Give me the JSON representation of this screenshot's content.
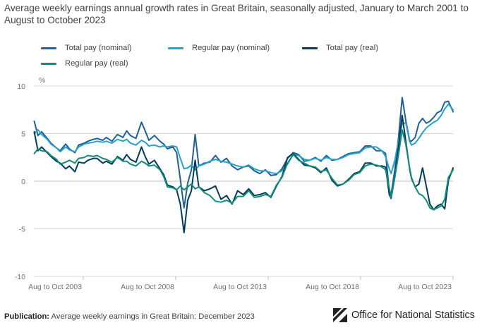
{
  "title": "Average weekly earnings annual growth rates in Great Britain, seasonally adjusted, January to March 2001 to August to October 2023",
  "footer": {
    "publication_label": "Publication:",
    "publication_text": "Average weekly earnings in Great Britain: December 2023",
    "logo_text": "Office for National Statistics"
  },
  "colors": {
    "total_nominal": "#206095",
    "regular_nominal": "#27A0CC",
    "total_real": "#003C57",
    "regular_real": "#118C7B",
    "grid": "#d9d9d9",
    "axis_text": "#707070"
  },
  "chart_data": {
    "type": "line",
    "title": "Average weekly earnings annual growth rates in Great Britain, seasonally adjusted, January to March 2001 to August to October 2023",
    "ylabel": "%",
    "xlabel": "",
    "ylim": [
      -10,
      10
    ],
    "yticks": [
      10,
      5,
      0,
      -5,
      -10
    ],
    "xlim": [
      2001.08,
      2023.75
    ],
    "xticks": [
      {
        "label": "Aug to Oct 2003",
        "x": 2003.75
      },
      {
        "label": "Aug to Oct 2008",
        "x": 2008.75
      },
      {
        "label": "Aug to Oct 2013",
        "x": 2013.75
      },
      {
        "label": "Aug to Oct 2018",
        "x": 2018.75
      },
      {
        "label": "Aug to Oct 2023",
        "x": 2023.75
      }
    ],
    "grid": true,
    "legend_position": "top",
    "series": [
      {
        "name": "Total pay (nominal)",
        "color_key": "total_nominal",
        "x": [
          2001.1,
          2001.3,
          2001.5,
          2001.8,
          2002.0,
          2002.3,
          2002.5,
          2002.8,
          2003.0,
          2003.3,
          2003.5,
          2003.8,
          2004.0,
          2004.3,
          2004.5,
          2004.8,
          2005.0,
          2005.3,
          2005.6,
          2005.9,
          2006.1,
          2006.3,
          2006.6,
          2006.9,
          2007.1,
          2007.3,
          2007.6,
          2007.9,
          2008.1,
          2008.3,
          2008.6,
          2008.8,
          2009.0,
          2009.2,
          2009.4,
          2009.6,
          2009.8,
          2010.0,
          2010.3,
          2010.6,
          2010.9,
          2011.2,
          2011.5,
          2011.8,
          2012.1,
          2012.4,
          2012.7,
          2013.0,
          2013.3,
          2013.6,
          2013.9,
          2014.2,
          2014.5,
          2014.8,
          2015.1,
          2015.4,
          2015.7,
          2016.0,
          2016.3,
          2016.6,
          2016.9,
          2017.2,
          2017.5,
          2017.8,
          2018.1,
          2018.4,
          2018.7,
          2019.0,
          2019.3,
          2019.6,
          2019.9,
          2020.1,
          2020.3,
          2020.4,
          2020.6,
          2020.8,
          2021.0,
          2021.2,
          2021.4,
          2021.5,
          2021.7,
          2021.9,
          2022.1,
          2022.3,
          2022.5,
          2022.7,
          2022.9,
          2023.1,
          2023.3,
          2023.5,
          2023.75
        ],
        "values": [
          6.3,
          4.8,
          5.2,
          4.5,
          4.0,
          3.5,
          3.2,
          3.9,
          3.4,
          3.0,
          3.8,
          4.0,
          4.2,
          4.4,
          4.5,
          4.3,
          4.6,
          4.2,
          4.9,
          4.6,
          5.3,
          4.8,
          4.5,
          6.2,
          5.3,
          4.3,
          4.8,
          4.2,
          3.9,
          3.4,
          3.6,
          3.0,
          0.2,
          -2.8,
          -0.2,
          1.2,
          4.9,
          1.6,
          1.9,
          2.0,
          2.7,
          2.0,
          2.4,
          1.6,
          1.2,
          1.5,
          1.6,
          1.1,
          0.8,
          1.2,
          0.6,
          0.7,
          1.3,
          2.4,
          3.0,
          2.8,
          2.1,
          2.2,
          2.5,
          2.1,
          2.7,
          2.2,
          2.3,
          2.6,
          2.9,
          3.0,
          3.1,
          3.7,
          3.7,
          3.2,
          3.2,
          2.9,
          -1.0,
          -1.4,
          1.2,
          4.6,
          8.8,
          6.3,
          4.3,
          4.2,
          4.6,
          6.1,
          6.6,
          6.1,
          6.3,
          6.7,
          7.2,
          7.4,
          8.3,
          8.4,
          7.3
        ]
      },
      {
        "name": "Regular pay (nominal)",
        "color_key": "regular_nominal",
        "x": [
          2001.1,
          2001.3,
          2001.5,
          2001.8,
          2002.0,
          2002.3,
          2002.5,
          2002.8,
          2003.0,
          2003.3,
          2003.5,
          2003.8,
          2004.0,
          2004.3,
          2004.5,
          2004.8,
          2005.0,
          2005.3,
          2005.6,
          2005.9,
          2006.1,
          2006.3,
          2006.6,
          2006.9,
          2007.1,
          2007.3,
          2007.6,
          2007.9,
          2008.1,
          2008.3,
          2008.6,
          2008.8,
          2009.0,
          2009.2,
          2009.4,
          2009.6,
          2009.8,
          2010.0,
          2010.3,
          2010.6,
          2010.9,
          2011.2,
          2011.5,
          2011.8,
          2012.1,
          2012.4,
          2012.7,
          2013.0,
          2013.3,
          2013.6,
          2013.9,
          2014.2,
          2014.5,
          2014.8,
          2015.1,
          2015.4,
          2015.7,
          2016.0,
          2016.3,
          2016.6,
          2016.9,
          2017.2,
          2017.5,
          2017.8,
          2018.1,
          2018.4,
          2018.7,
          2019.0,
          2019.3,
          2019.6,
          2019.9,
          2020.1,
          2020.3,
          2020.4,
          2020.6,
          2020.8,
          2021.0,
          2021.2,
          2021.4,
          2021.5,
          2021.7,
          2021.9,
          2022.1,
          2022.3,
          2022.5,
          2022.7,
          2022.9,
          2023.1,
          2023.3,
          2023.5,
          2023.75
        ],
        "values": [
          5.0,
          5.4,
          4.9,
          4.4,
          3.9,
          3.5,
          3.1,
          3.6,
          3.3,
          3.1,
          3.6,
          3.9,
          4.0,
          4.1,
          4.2,
          4.1,
          4.2,
          4.0,
          4.4,
          4.2,
          4.4,
          4.0,
          3.8,
          4.3,
          4.1,
          3.7,
          3.8,
          3.6,
          3.7,
          3.6,
          3.7,
          3.6,
          2.4,
          1.3,
          1.4,
          1.7,
          1.2,
          1.6,
          1.8,
          2.1,
          2.3,
          2.1,
          2.0,
          1.8,
          1.6,
          1.5,
          1.7,
          1.3,
          1.1,
          1.1,
          0.9,
          0.8,
          1.1,
          1.8,
          2.8,
          2.7,
          2.3,
          2.2,
          2.4,
          2.2,
          2.5,
          2.3,
          2.3,
          2.5,
          2.8,
          2.9,
          3.0,
          3.5,
          3.6,
          3.6,
          3.2,
          2.6,
          1.3,
          0.8,
          2.2,
          4.3,
          6.1,
          6.1,
          4.2,
          3.8,
          4.0,
          4.5,
          5.1,
          5.6,
          5.9,
          6.2,
          6.4,
          6.9,
          7.6,
          8.1,
          7.5
        ]
      },
      {
        "name": "Total pay (real)",
        "color_key": "total_real",
        "x": [
          2001.1,
          2001.3,
          2001.5,
          2001.8,
          2002.0,
          2002.3,
          2002.5,
          2002.8,
          2003.0,
          2003.3,
          2003.5,
          2003.8,
          2004.0,
          2004.3,
          2004.5,
          2004.8,
          2005.0,
          2005.3,
          2005.6,
          2005.9,
          2006.1,
          2006.3,
          2006.6,
          2006.9,
          2007.1,
          2007.3,
          2007.6,
          2007.9,
          2008.1,
          2008.3,
          2008.6,
          2008.8,
          2009.0,
          2009.2,
          2009.4,
          2009.6,
          2009.8,
          2010.0,
          2010.3,
          2010.6,
          2010.9,
          2011.2,
          2011.5,
          2011.8,
          2012.1,
          2012.4,
          2012.7,
          2013.0,
          2013.3,
          2013.6,
          2013.9,
          2014.2,
          2014.5,
          2014.8,
          2015.1,
          2015.4,
          2015.7,
          2016.0,
          2016.3,
          2016.6,
          2016.9,
          2017.2,
          2017.5,
          2017.8,
          2018.1,
          2018.4,
          2018.7,
          2019.0,
          2019.3,
          2019.6,
          2019.9,
          2020.1,
          2020.3,
          2020.4,
          2020.6,
          2020.8,
          2021.0,
          2021.2,
          2021.4,
          2021.5,
          2021.7,
          2021.9,
          2022.1,
          2022.3,
          2022.5,
          2022.7,
          2022.9,
          2023.1,
          2023.3,
          2023.5,
          2023.75
        ],
        "values": [
          5.2,
          3.2,
          3.6,
          3.0,
          2.6,
          2.1,
          1.9,
          1.3,
          1.6,
          1.0,
          2.0,
          1.9,
          2.2,
          2.4,
          2.4,
          1.9,
          2.1,
          1.8,
          2.6,
          2.2,
          2.8,
          2.3,
          2.0,
          3.6,
          2.6,
          1.8,
          2.2,
          1.3,
          0.7,
          -0.4,
          -0.6,
          -0.9,
          -2.4,
          -5.4,
          -2.0,
          -1.0,
          2.2,
          -0.6,
          -1.0,
          -0.8,
          -0.5,
          -1.9,
          -1.5,
          -2.4,
          -1.0,
          -1.4,
          -0.8,
          -1.5,
          -1.4,
          -1.2,
          -1.7,
          -0.5,
          0.5,
          2.5,
          2.9,
          2.3,
          1.7,
          1.6,
          1.4,
          0.9,
          1.4,
          0.1,
          -0.5,
          -0.3,
          0.2,
          0.8,
          1.0,
          1.9,
          1.9,
          1.6,
          1.6,
          1.5,
          -1.4,
          -1.8,
          0.5,
          3.6,
          6.9,
          4.1,
          1.3,
          0.3,
          -0.6,
          -0.3,
          1.4,
          -0.5,
          -2.4,
          -3.0,
          -2.6,
          -2.4,
          -2.9,
          0.1,
          1.4
        ]
      },
      {
        "name": "Regular pay (real)",
        "color_key": "regular_real",
        "x": [
          2001.1,
          2001.3,
          2001.5,
          2001.8,
          2002.0,
          2002.3,
          2002.5,
          2002.8,
          2003.0,
          2003.3,
          2003.5,
          2003.8,
          2004.0,
          2004.3,
          2004.5,
          2004.8,
          2005.0,
          2005.3,
          2005.6,
          2005.9,
          2006.1,
          2006.3,
          2006.6,
          2006.9,
          2007.1,
          2007.3,
          2007.6,
          2007.9,
          2008.1,
          2008.3,
          2008.6,
          2008.8,
          2009.0,
          2009.2,
          2009.4,
          2009.6,
          2009.8,
          2010.0,
          2010.3,
          2010.6,
          2010.9,
          2011.2,
          2011.5,
          2011.8,
          2012.1,
          2012.4,
          2012.7,
          2013.0,
          2013.3,
          2013.6,
          2013.9,
          2014.2,
          2014.5,
          2014.8,
          2015.1,
          2015.4,
          2015.7,
          2016.0,
          2016.3,
          2016.6,
          2016.9,
          2017.2,
          2017.5,
          2017.8,
          2018.1,
          2018.4,
          2018.7,
          2019.0,
          2019.3,
          2019.6,
          2019.9,
          2020.1,
          2020.3,
          2020.4,
          2020.6,
          2020.8,
          2021.0,
          2021.2,
          2021.4,
          2021.5,
          2021.7,
          2021.9,
          2022.1,
          2022.3,
          2022.5,
          2022.7,
          2022.9,
          2023.1,
          2023.3,
          2023.5,
          2023.75
        ],
        "values": [
          2.9,
          3.4,
          3.2,
          3.1,
          2.7,
          2.3,
          1.8,
          2.0,
          2.2,
          1.9,
          2.4,
          2.5,
          2.7,
          2.6,
          2.7,
          2.4,
          2.3,
          2.0,
          2.5,
          2.1,
          2.1,
          1.8,
          1.6,
          2.1,
          1.9,
          1.6,
          1.7,
          1.2,
          0.5,
          -0.6,
          -0.7,
          -0.9,
          -0.5,
          -0.9,
          -0.6,
          -0.3,
          -0.8,
          -0.6,
          -1.2,
          -1.5,
          -2.1,
          -2.2,
          -2.0,
          -2.3,
          -1.6,
          -1.6,
          -1.0,
          -1.7,
          -1.6,
          -1.4,
          -1.6,
          -0.4,
          0.4,
          1.9,
          2.8,
          2.2,
          1.9,
          1.6,
          1.5,
          1.0,
          1.2,
          0.3,
          -0.4,
          -0.3,
          0.1,
          0.7,
          0.9,
          1.6,
          1.8,
          1.7,
          1.5,
          1.2,
          -0.7,
          -1.7,
          0.4,
          2.8,
          5.4,
          3.8,
          1.4,
          0.4,
          -0.6,
          -1.3,
          -1.5,
          -2.0,
          -2.8,
          -3.0,
          -2.8,
          -2.6,
          -1.9,
          0.4,
          1.2
        ]
      }
    ]
  }
}
